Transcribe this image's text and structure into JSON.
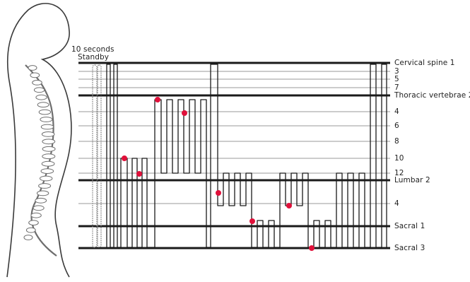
{
  "header": {
    "duration": "10 seconds",
    "standby": "Standby"
  },
  "levels": [
    {
      "id": "c1",
      "label": "Cervical spine 1",
      "major": true
    },
    {
      "id": "c3",
      "label": "3",
      "major": false
    },
    {
      "id": "c5",
      "label": "5",
      "major": false
    },
    {
      "id": "c7",
      "label": "7",
      "major": false
    },
    {
      "id": "t2",
      "label": "Thoracic vertebrae 2",
      "major": true
    },
    {
      "id": "t4",
      "label": "4",
      "major": false
    },
    {
      "id": "t6",
      "label": "6",
      "major": false
    },
    {
      "id": "t8",
      "label": "8",
      "major": false
    },
    {
      "id": "t10",
      "label": "10",
      "major": false
    },
    {
      "id": "t12",
      "label": "12",
      "major": false
    },
    {
      "id": "l2",
      "label": "Lumbar 2",
      "major": true
    },
    {
      "id": "l4",
      "label": "4",
      "major": false
    },
    {
      "id": "s1",
      "label": "Sacral 1",
      "major": true
    },
    {
      "id": "s3",
      "label": "Sacral 3",
      "major": true
    }
  ],
  "colors": {
    "line": "#1a1a1a",
    "grid": "#9a9a9a",
    "marker": "#e0103a",
    "standby": "#888888",
    "skeleton": "#6e6e6e"
  },
  "icons": {
    "figure": "human-spine-silhouette"
  }
}
